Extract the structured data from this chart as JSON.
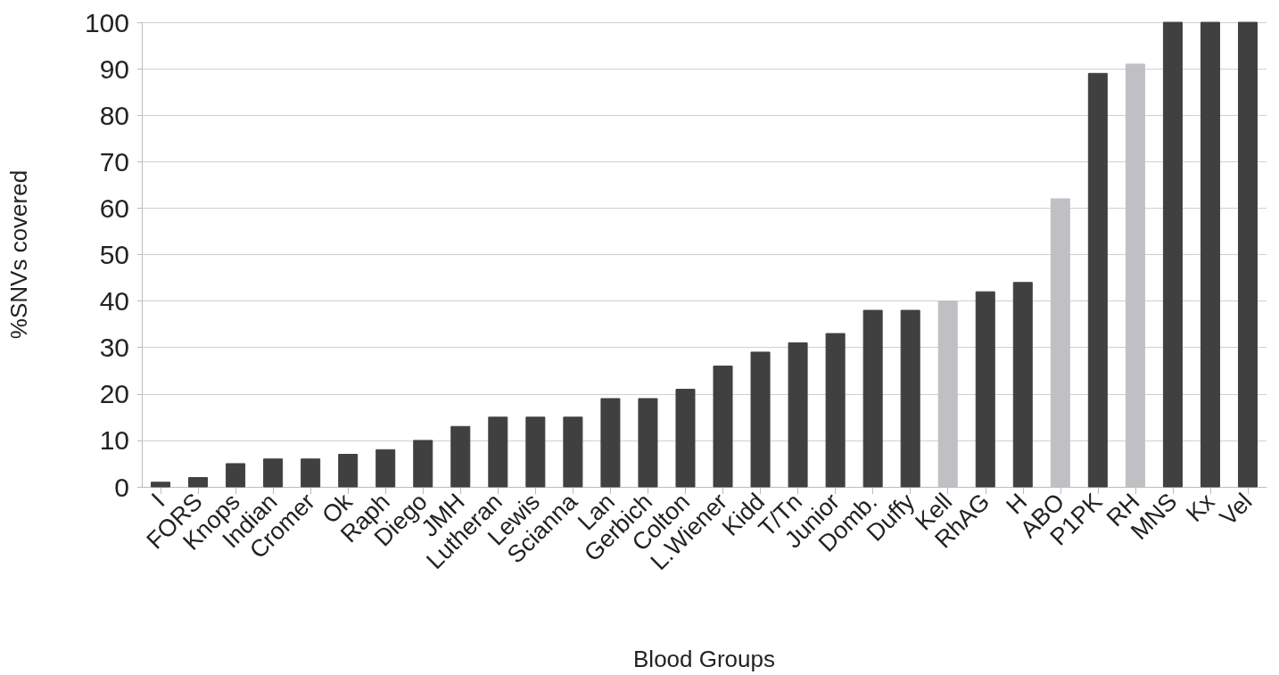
{
  "chart_data": {
    "type": "bar",
    "xlabel": "Blood Groups",
    "ylabel": "%SNVs covered",
    "categories": [
      "I",
      "FORS",
      "Knops",
      "Indian",
      "Cromer",
      "Ok",
      "Raph",
      "Diego",
      "JMH",
      "Lutheran",
      "Lewis",
      "Scianna",
      "Lan",
      "Gerbich",
      "Colton",
      "L.Wiener",
      "Kidd",
      "T/Tn",
      "Junior",
      "Domb.",
      "Duffy",
      "Kell",
      "RhAG",
      "H",
      "ABO",
      "P1PK",
      "RH",
      "MNS",
      "Kx",
      "Vel"
    ],
    "values": [
      1,
      2,
      5,
      6,
      6,
      7,
      8,
      10,
      13,
      15,
      15,
      15,
      19,
      19,
      21,
      26,
      29,
      31,
      33,
      38,
      38,
      40,
      42,
      44,
      62,
      89,
      91,
      100,
      100,
      100
    ],
    "colors": [
      "#404040",
      "#404040",
      "#404040",
      "#404040",
      "#404040",
      "#404040",
      "#404040",
      "#404040",
      "#404040",
      "#404040",
      "#404040",
      "#404040",
      "#404040",
      "#404040",
      "#404040",
      "#404040",
      "#404040",
      "#404040",
      "#404040",
      "#404040",
      "#404040",
      "#c0c0c4",
      "#404040",
      "#404040",
      "#c0c0c4",
      "#404040",
      "#c0c0c4",
      "#404040",
      "#404040",
      "#404040"
    ],
    "ylim": [
      0,
      100
    ],
    "yticks": [
      0,
      10,
      20,
      30,
      40,
      50,
      60,
      70,
      80,
      90,
      100
    ],
    "grid": "y"
  }
}
